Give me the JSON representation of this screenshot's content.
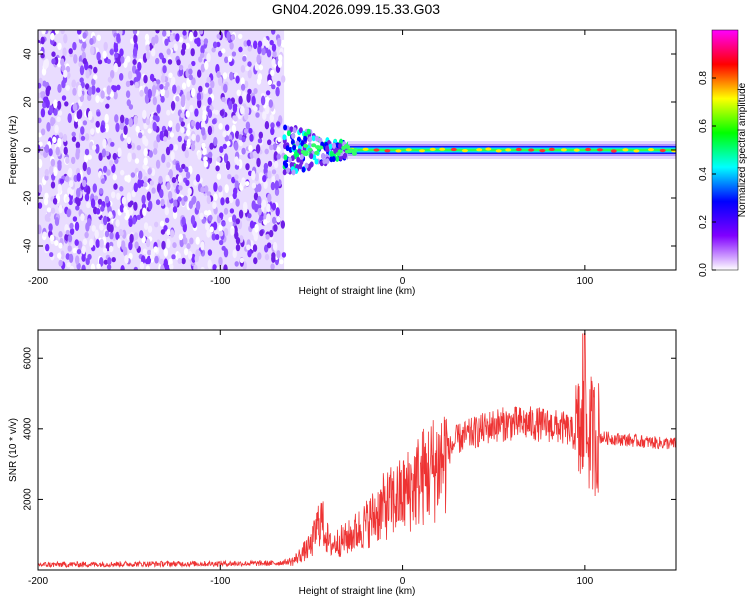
{
  "title": "GN04.2026.099.15.33.G03",
  "chart_data": [
    {
      "type": "heatmap",
      "xlabel": "Height of straight line (km)",
      "ylabel": "Frequency (Hz)",
      "xlim": [
        -200,
        150
      ],
      "ylim": [
        -50,
        50
      ],
      "x_ticks": [
        -200,
        -100,
        0,
        100
      ],
      "y_ticks": [
        -40,
        -20,
        0,
        20,
        40
      ],
      "colorbar": {
        "label": "Normalized spectral amplitude",
        "range": [
          0,
          1
        ],
        "ticks": [
          "0.0",
          "0.2",
          "0.4",
          "0.6",
          "0.8"
        ],
        "colors": [
          "#ffffff",
          "#8000ff",
          "#0000ff",
          "#00ffff",
          "#00ff00",
          "#ffff00",
          "#ff0000",
          "#ff00ff"
        ]
      },
      "regions": [
        {
          "name": "noise",
          "x_range": [
            -200,
            -65
          ],
          "freq_range": [
            -50,
            50
          ],
          "amplitude": 0.05
        },
        {
          "name": "carrier",
          "x_range": [
            -65,
            150
          ],
          "freq_center": 0,
          "amplitude": 1.0
        }
      ]
    },
    {
      "type": "line",
      "xlabel": "Height of straight line (km)",
      "ylabel": "SNR (10 * v/v)",
      "xlim": [
        -200,
        150
      ],
      "ylim": [
        0,
        6800
      ],
      "x_ticks": [
        -200,
        -100,
        0,
        100
      ],
      "y_ticks": [
        2000,
        4000,
        6000
      ],
      "series": [
        {
          "name": "SNR",
          "color": "#ee3333",
          "x": [
            -200,
            -150,
            -100,
            -70,
            -60,
            -50,
            -45,
            -40,
            -30,
            -20,
            -10,
            0,
            10,
            20,
            30,
            40,
            50,
            60,
            70,
            80,
            90,
            95,
            100,
            105,
            110,
            120,
            130,
            140,
            150
          ],
          "y": [
            150,
            170,
            180,
            190,
            250,
            700,
            1500,
            700,
            900,
            1300,
            1800,
            2100,
            2600,
            3000,
            3700,
            3900,
            4100,
            4150,
            4150,
            4100,
            4000,
            3800,
            3900,
            3800,
            3750,
            3700,
            3650,
            3600,
            3580
          ]
        }
      ]
    }
  ]
}
